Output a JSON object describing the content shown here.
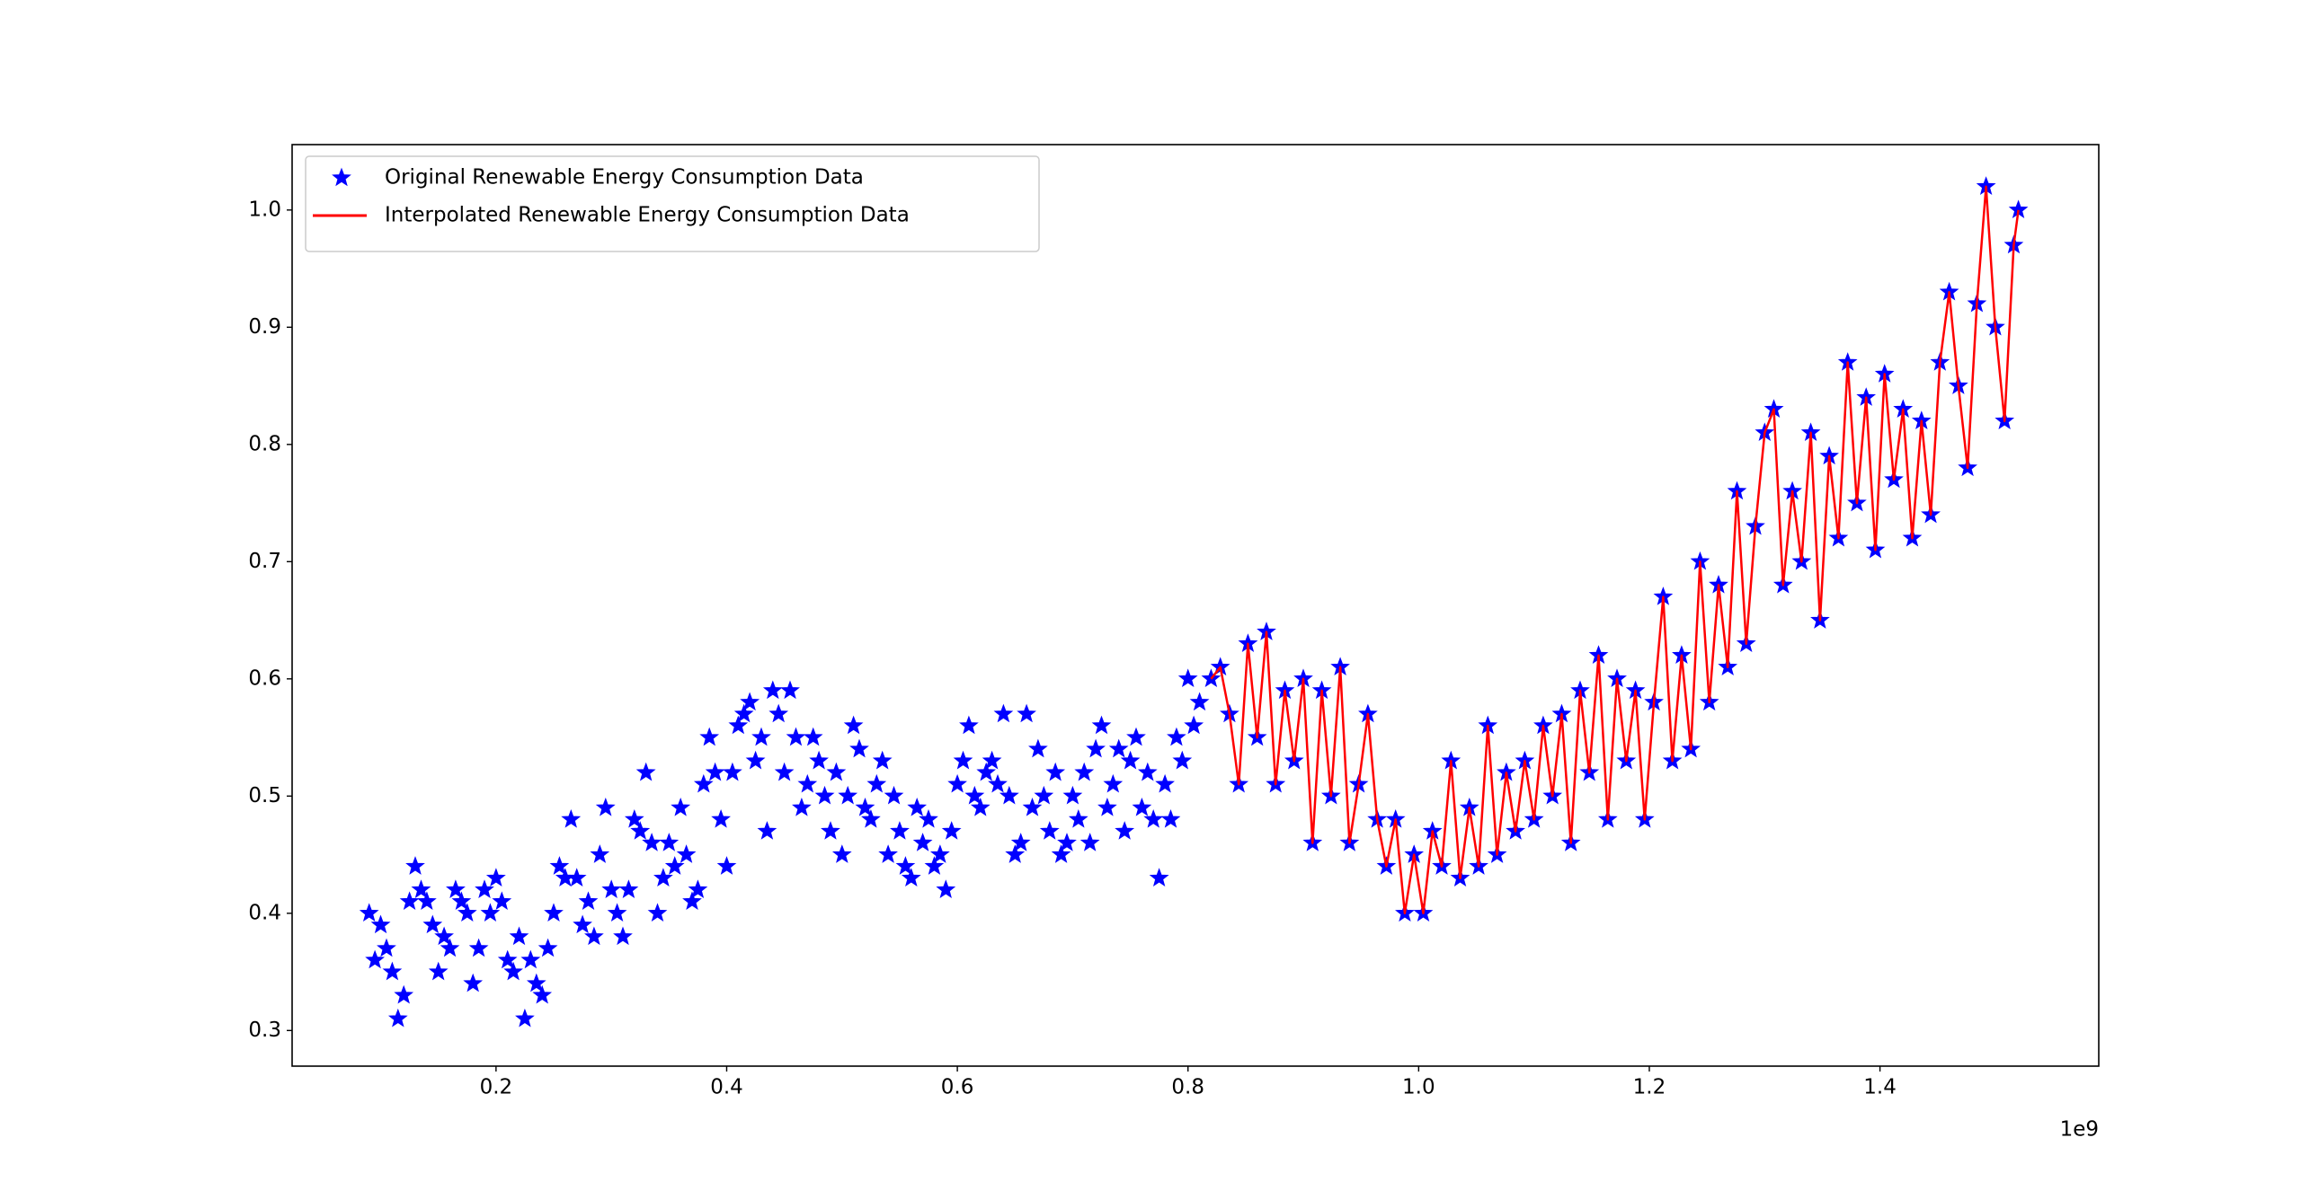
{
  "chart_data": {
    "type": "scatter",
    "x_offset_label": "1e9",
    "xlim": [
      0.0232,
      1.5897
    ],
    "ylim": [
      0.2696,
      1.0558
    ],
    "xticks": [
      0.2,
      0.4,
      0.6,
      0.8,
      {
        "value": 1,
        "label": "1.0"
      },
      1.2,
      1.4
    ],
    "yticks": [
      0.3,
      0.4,
      0.5,
      0.6,
      0.7,
      0.8,
      0.9,
      {
        "value": 1,
        "label": "1.0"
      }
    ],
    "legend": "upper left",
    "series": [
      {
        "name": "Original Renewable Energy Consumption Data",
        "kind": "scatter",
        "marker": "star",
        "color": "#0000ff",
        "x": [
          0.09,
          0.095,
          0.1,
          0.105,
          0.11,
          0.115,
          0.12,
          0.125,
          0.13,
          0.135,
          0.14,
          0.145,
          0.15,
          0.155,
          0.16,
          0.165,
          0.17,
          0.175,
          0.18,
          0.185,
          0.19,
          0.195,
          0.2,
          0.205,
          0.21,
          0.215,
          0.22,
          0.225,
          0.23,
          0.235,
          0.24,
          0.245,
          0.25,
          0.255,
          0.26,
          0.265,
          0.27,
          0.275,
          0.28,
          0.285,
          0.29,
          0.295,
          0.3,
          0.305,
          0.31,
          0.315,
          0.32,
          0.325,
          0.33,
          0.335,
          0.34,
          0.345,
          0.35,
          0.355,
          0.36,
          0.365,
          0.37,
          0.375,
          0.38,
          0.385,
          0.39,
          0.395,
          0.4,
          0.405,
          0.41,
          0.415,
          0.42,
          0.425,
          0.43,
          0.435,
          0.44,
          0.445,
          0.45,
          0.455,
          0.46,
          0.465,
          0.47,
          0.475,
          0.48,
          0.485,
          0.49,
          0.495,
          0.5,
          0.505,
          0.51,
          0.515,
          0.52,
          0.525,
          0.53,
          0.535,
          0.54,
          0.545,
          0.55,
          0.555,
          0.56,
          0.565,
          0.57,
          0.575,
          0.58,
          0.585,
          0.59,
          0.595,
          0.6,
          0.605,
          0.61,
          0.615,
          0.62,
          0.625,
          0.63,
          0.635,
          0.64,
          0.645,
          0.65,
          0.655,
          0.66,
          0.665,
          0.67,
          0.675,
          0.68,
          0.685,
          0.69,
          0.695,
          0.7,
          0.705,
          0.71,
          0.715,
          0.72,
          0.725,
          0.73,
          0.735,
          0.74,
          0.745,
          0.75,
          0.755,
          0.76,
          0.765,
          0.77,
          0.775,
          0.78,
          0.785,
          0.79,
          0.795,
          0.8,
          0.805,
          0.81,
          0.82,
          0.828,
          0.836,
          0.844,
          0.852,
          0.86,
          0.868,
          0.876,
          0.884,
          0.892,
          0.9,
          0.908,
          0.916,
          0.924,
          0.932,
          0.94,
          0.948,
          0.956,
          0.964,
          0.972,
          0.98,
          0.988,
          0.996,
          1.004,
          1.012,
          1.02,
          1.028,
          1.036,
          1.044,
          1.052,
          1.06,
          1.068,
          1.076,
          1.084,
          1.092,
          1.1,
          1.108,
          1.116,
          1.124,
          1.132,
          1.14,
          1.148,
          1.156,
          1.164,
          1.172,
          1.18,
          1.188,
          1.196,
          1.204,
          1.212,
          1.22,
          1.228,
          1.236,
          1.244,
          1.252,
          1.26,
          1.268,
          1.276,
          1.284,
          1.292,
          1.3,
          1.308,
          1.316,
          1.324,
          1.332,
          1.34,
          1.348,
          1.356,
          1.364,
          1.372,
          1.38,
          1.388,
          1.396,
          1.404,
          1.412,
          1.42,
          1.428,
          1.436,
          1.444,
          1.452,
          1.46,
          1.468,
          1.476,
          1.484,
          1.492,
          1.5,
          1.508,
          1.516,
          1.52
        ],
        "values": [
          0.4,
          0.36,
          0.39,
          0.37,
          0.35,
          0.31,
          0.33,
          0.41,
          0.44,
          0.42,
          0.41,
          0.39,
          0.35,
          0.38,
          0.37,
          0.42,
          0.41,
          0.4,
          0.34,
          0.37,
          0.42,
          0.4,
          0.43,
          0.41,
          0.36,
          0.35,
          0.38,
          0.31,
          0.36,
          0.34,
          0.33,
          0.37,
          0.4,
          0.44,
          0.43,
          0.48,
          0.43,
          0.39,
          0.41,
          0.38,
          0.45,
          0.49,
          0.42,
          0.4,
          0.38,
          0.42,
          0.48,
          0.47,
          0.52,
          0.46,
          0.4,
          0.43,
          0.46,
          0.44,
          0.49,
          0.45,
          0.41,
          0.42,
          0.51,
          0.55,
          0.52,
          0.48,
          0.44,
          0.52,
          0.56,
          0.57,
          0.58,
          0.53,
          0.55,
          0.47,
          0.59,
          0.57,
          0.52,
          0.59,
          0.55,
          0.49,
          0.51,
          0.55,
          0.53,
          0.5,
          0.47,
          0.52,
          0.45,
          0.5,
          0.56,
          0.54,
          0.49,
          0.48,
          0.51,
          0.53,
          0.45,
          0.5,
          0.47,
          0.44,
          0.43,
          0.49,
          0.46,
          0.48,
          0.44,
          0.45,
          0.42,
          0.47,
          0.51,
          0.53,
          0.56,
          0.5,
          0.49,
          0.52,
          0.53,
          0.51,
          0.57,
          0.5,
          0.45,
          0.46,
          0.57,
          0.49,
          0.54,
          0.5,
          0.47,
          0.52,
          0.45,
          0.46,
          0.5,
          0.48,
          0.52,
          0.46,
          0.54,
          0.56,
          0.49,
          0.51,
          0.54,
          0.47,
          0.53,
          0.55,
          0.49,
          0.52,
          0.48,
          0.43,
          0.51,
          0.48,
          0.55,
          0.53,
          0.6,
          0.56,
          0.58,
          0.6,
          0.61,
          0.57,
          0.51,
          0.63,
          0.55,
          0.64,
          0.51,
          0.59,
          0.53,
          0.6,
          0.46,
          0.59,
          0.5,
          0.61,
          0.46,
          0.51,
          0.57,
          0.48,
          0.44,
          0.48,
          0.4,
          0.45,
          0.4,
          0.47,
          0.44,
          0.53,
          0.43,
          0.49,
          0.44,
          0.56,
          0.45,
          0.52,
          0.47,
          0.53,
          0.48,
          0.56,
          0.5,
          0.57,
          0.46,
          0.59,
          0.52,
          0.62,
          0.48,
          0.6,
          0.53,
          0.59,
          0.48,
          0.58,
          0.67,
          0.53,
          0.62,
          0.54,
          0.7,
          0.58,
          0.68,
          0.61,
          0.76,
          0.63,
          0.73,
          0.81,
          0.83,
          0.68,
          0.76,
          0.7,
          0.81,
          0.65,
          0.79,
          0.72,
          0.87,
          0.75,
          0.84,
          0.71,
          0.86,
          0.77,
          0.83,
          0.72,
          0.82,
          0.74,
          0.87,
          0.93,
          0.85,
          0.78,
          0.92,
          1.02,
          0.9,
          0.82,
          0.97,
          1
        ]
      },
      {
        "name": "Interpolated Renewable Energy Consumption Data",
        "kind": "line",
        "color": "#ff0000",
        "x": [
          0.82,
          0.828,
          0.836,
          0.844,
          0.852,
          0.86,
          0.868,
          0.876,
          0.884,
          0.892,
          0.9,
          0.908,
          0.916,
          0.924,
          0.932,
          0.94,
          0.948,
          0.956,
          0.964,
          0.972,
          0.98,
          0.988,
          0.996,
          1.004,
          1.012,
          1.02,
          1.028,
          1.036,
          1.044,
          1.052,
          1.06,
          1.068,
          1.076,
          1.084,
          1.092,
          1.1,
          1.108,
          1.116,
          1.124,
          1.132,
          1.14,
          1.148,
          1.156,
          1.164,
          1.172,
          1.18,
          1.188,
          1.196,
          1.204,
          1.212,
          1.22,
          1.228,
          1.236,
          1.244,
          1.252,
          1.26,
          1.268,
          1.276,
          1.284,
          1.292,
          1.3,
          1.308,
          1.316,
          1.324,
          1.332,
          1.34,
          1.348,
          1.356,
          1.364,
          1.372,
          1.38,
          1.388,
          1.396,
          1.404,
          1.412,
          1.42,
          1.428,
          1.436,
          1.444,
          1.452,
          1.46,
          1.468,
          1.476,
          1.484,
          1.492,
          1.5,
          1.508,
          1.516,
          1.52
        ],
        "values": [
          0.6,
          0.61,
          0.57,
          0.51,
          0.63,
          0.55,
          0.64,
          0.51,
          0.59,
          0.53,
          0.6,
          0.46,
          0.59,
          0.5,
          0.61,
          0.46,
          0.51,
          0.57,
          0.48,
          0.44,
          0.48,
          0.4,
          0.45,
          0.4,
          0.47,
          0.44,
          0.53,
          0.43,
          0.49,
          0.44,
          0.56,
          0.45,
          0.52,
          0.47,
          0.53,
          0.48,
          0.56,
          0.5,
          0.57,
          0.46,
          0.59,
          0.52,
          0.62,
          0.48,
          0.6,
          0.53,
          0.59,
          0.48,
          0.58,
          0.67,
          0.53,
          0.62,
          0.54,
          0.7,
          0.58,
          0.68,
          0.61,
          0.76,
          0.63,
          0.73,
          0.81,
          0.83,
          0.68,
          0.76,
          0.7,
          0.81,
          0.65,
          0.79,
          0.72,
          0.87,
          0.75,
          0.84,
          0.71,
          0.86,
          0.77,
          0.83,
          0.72,
          0.82,
          0.74,
          0.87,
          0.93,
          0.85,
          0.78,
          0.92,
          1.02,
          0.9,
          0.82,
          0.97,
          1
        ]
      }
    ]
  }
}
